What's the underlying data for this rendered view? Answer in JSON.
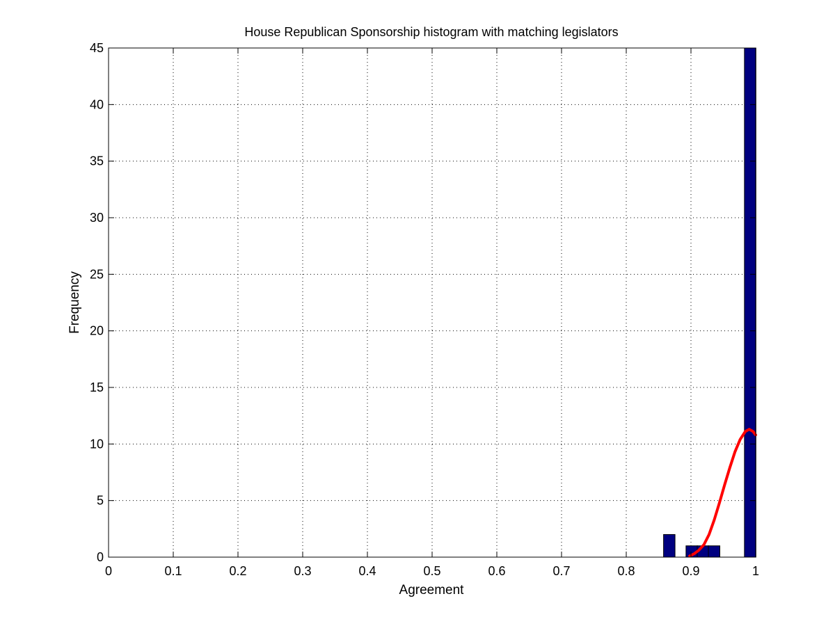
{
  "chart_data": {
    "type": "bar",
    "title": "House Republican Sponsorship histogram with matching legislators",
    "xlabel": "Agreement",
    "ylabel": "Frequency",
    "xlim": [
      0,
      1
    ],
    "ylim": [
      0,
      45
    ],
    "grid": true,
    "x_ticks": [
      "0",
      "0.1",
      "0.2",
      "0.3",
      "0.4",
      "0.5",
      "0.6",
      "0.7",
      "0.8",
      "0.9",
      "1"
    ],
    "y_ticks": [
      "0",
      "5",
      "10",
      "15",
      "20",
      "25",
      "30",
      "35",
      "40",
      "45"
    ],
    "bars": [
      {
        "x": 0.8665,
        "width": 0.0177,
        "value": 2
      },
      {
        "x": 0.9012,
        "width": 0.0177,
        "value": 1
      },
      {
        "x": 0.9185,
        "width": 0.0177,
        "value": 1
      },
      {
        "x": 0.9358,
        "width": 0.0177,
        "value": 1
      },
      {
        "x": 0.9915,
        "width": 0.0177,
        "value": 45
      }
    ],
    "bar_color": "#000080",
    "fit_curve": {
      "color": "#ff0000",
      "x": [
        0.898,
        0.905,
        0.912,
        0.92,
        0.928,
        0.936,
        0.944,
        0.952,
        0.96,
        0.968,
        0.976,
        0.984,
        0.99,
        0.996,
        1.0
      ],
      "y": [
        0.1,
        0.3,
        0.6,
        1.1,
        2.0,
        3.3,
        4.8,
        6.4,
        7.9,
        9.3,
        10.4,
        11.1,
        11.3,
        11.1,
        10.8
      ]
    }
  }
}
